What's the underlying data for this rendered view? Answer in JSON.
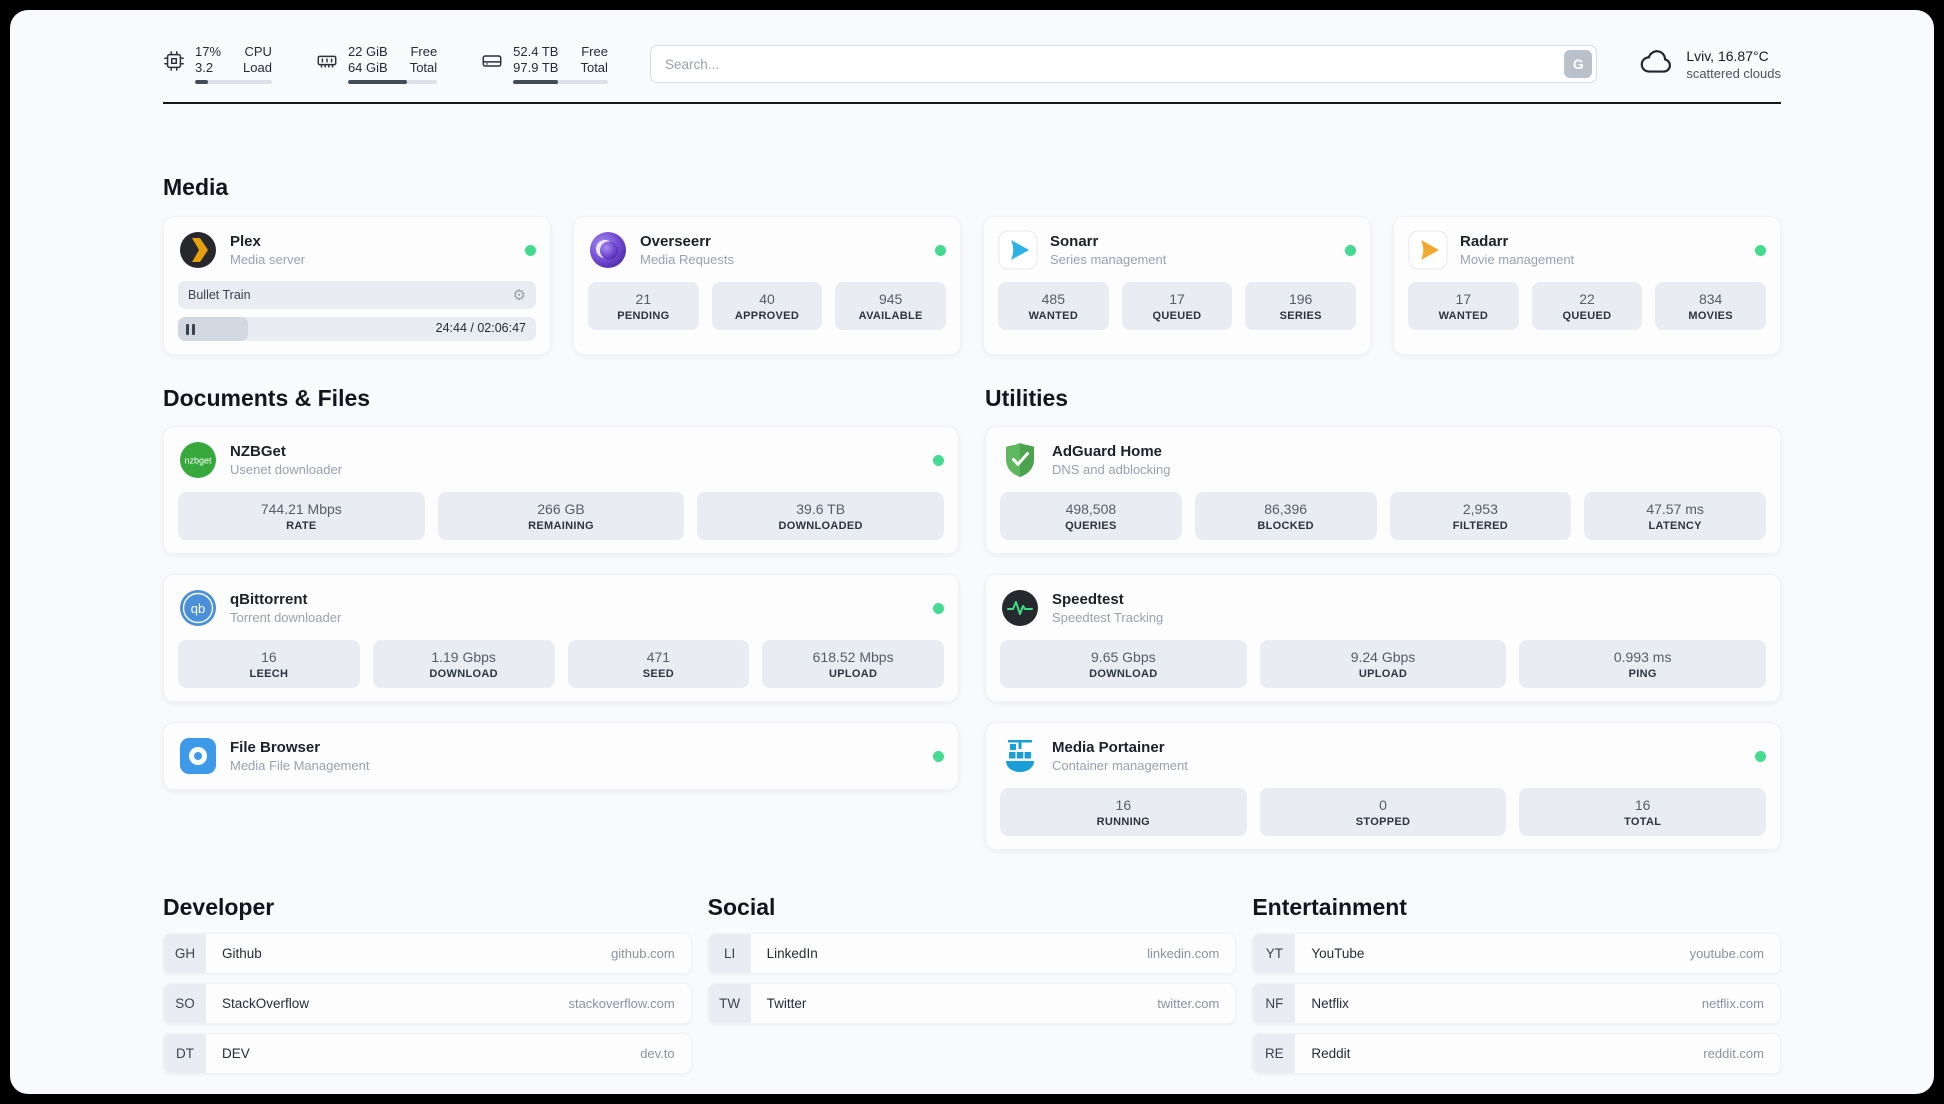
{
  "colors": {
    "status_online": "#44da8f",
    "plex_accent": "#e5a00d",
    "sonarr_accent": "#2bb0e8",
    "radarr_accent": "#f0a92e",
    "adguard_accent": "#5fb85f",
    "portainer_accent": "#1b9ed8",
    "speedtest_accent": "#3ddc84"
  },
  "icons": {
    "gear": "⚙"
  },
  "topbar": {
    "cpu": {
      "line1_value": "17%",
      "line1_label": "CPU",
      "line2_value": "3.2",
      "line2_label": "Load",
      "progress_pct": 17
    },
    "ram": {
      "line1_value": "22 GiB",
      "line1_label": "Free",
      "line2_value": "64 GiB",
      "line2_label": "Total",
      "progress_pct": 66
    },
    "disk": {
      "line1_value": "52.4 TB",
      "line1_label": "Free",
      "line2_value": "97.9 TB",
      "line2_label": "Total",
      "progress_pct": 47
    },
    "search": {
      "placeholder": "Search...",
      "button_label": "G"
    },
    "weather": {
      "location": "Lviv, 16.87°C",
      "condition": "scattered clouds"
    }
  },
  "media": {
    "heading": "Media",
    "plex": {
      "name": "Plex",
      "description": "Media server",
      "now_playing": "Bullet Train",
      "time_display": "24:44 / 02:06:47",
      "progress_pct": 19.5
    },
    "overseerr": {
      "name": "Overseerr",
      "description": "Media Requests",
      "stats": [
        {
          "value": "21",
          "label": "PENDING"
        },
        {
          "value": "40",
          "label": "APPROVED"
        },
        {
          "value": "945",
          "label": "AVAILABLE"
        }
      ]
    },
    "sonarr": {
      "name": "Sonarr",
      "description": "Series management",
      "stats": [
        {
          "value": "485",
          "label": "WANTED"
        },
        {
          "value": "17",
          "label": "QUEUED"
        },
        {
          "value": "196",
          "label": "SERIES"
        }
      ]
    },
    "radarr": {
      "name": "Radarr",
      "description": "Movie management",
      "stats": [
        {
          "value": "17",
          "label": "WANTED"
        },
        {
          "value": "22",
          "label": "QUEUED"
        },
        {
          "value": "834",
          "label": "MOVIES"
        }
      ]
    }
  },
  "documents": {
    "heading": "Documents & Files",
    "nzbget": {
      "name": "NZBGet",
      "description": "Usenet downloader",
      "icon_text": "nzbget",
      "stats": [
        {
          "value": "744.21 Mbps",
          "label": "RATE"
        },
        {
          "value": "266 GB",
          "label": "REMAINING"
        },
        {
          "value": "39.6 TB",
          "label": "DOWNLOADED"
        }
      ]
    },
    "qbittorrent": {
      "name": "qBittorrent",
      "description": "Torrent downloader",
      "icon_text": "qb",
      "stats": [
        {
          "value": "16",
          "label": "LEECH"
        },
        {
          "value": "1.19 Gbps",
          "label": "DOWNLOAD"
        },
        {
          "value": "471",
          "label": "SEED"
        },
        {
          "value": "618.52 Mbps",
          "label": "UPLOAD"
        }
      ]
    },
    "filebrowser": {
      "name": "File Browser",
      "description": "Media File Management"
    }
  },
  "utilities": {
    "heading": "Utilities",
    "adguard": {
      "name": "AdGuard Home",
      "description": "DNS and adblocking",
      "stats": [
        {
          "value": "498,508",
          "label": "QUERIES"
        },
        {
          "value": "86,396",
          "label": "BLOCKED"
        },
        {
          "value": "2,953",
          "label": "FILTERED"
        },
        {
          "value": "47.57 ms",
          "label": "LATENCY"
        }
      ]
    },
    "speedtest": {
      "name": "Speedtest",
      "description": "Speedtest Tracking",
      "stats": [
        {
          "value": "9.65 Gbps",
          "label": "DOWNLOAD"
        },
        {
          "value": "9.24 Gbps",
          "label": "UPLOAD"
        },
        {
          "value": "0.993 ms",
          "label": "PING"
        }
      ]
    },
    "portainer": {
      "name": "Media Portainer",
      "description": "Container management",
      "stats": [
        {
          "value": "16",
          "label": "RUNNING"
        },
        {
          "value": "0",
          "label": "STOPPED"
        },
        {
          "value": "16",
          "label": "TOTAL"
        }
      ]
    }
  },
  "links": {
    "developer": {
      "heading": "Developer",
      "items": [
        {
          "abbr": "GH",
          "name": "Github",
          "url": "github.com"
        },
        {
          "abbr": "SO",
          "name": "StackOverflow",
          "url": "stackoverflow.com"
        },
        {
          "abbr": "DT",
          "name": "DEV",
          "url": "dev.to"
        }
      ]
    },
    "social": {
      "heading": "Social",
      "items": [
        {
          "abbr": "LI",
          "name": "LinkedIn",
          "url": "linkedin.com"
        },
        {
          "abbr": "TW",
          "name": "Twitter",
          "url": "twitter.com"
        }
      ]
    },
    "entertainment": {
      "heading": "Entertainment",
      "items": [
        {
          "abbr": "YT",
          "name": "YouTube",
          "url": "youtube.com"
        },
        {
          "abbr": "NF",
          "name": "Netflix",
          "url": "netflix.com"
        },
        {
          "abbr": "RE",
          "name": "Reddit",
          "url": "reddit.com"
        }
      ]
    }
  }
}
